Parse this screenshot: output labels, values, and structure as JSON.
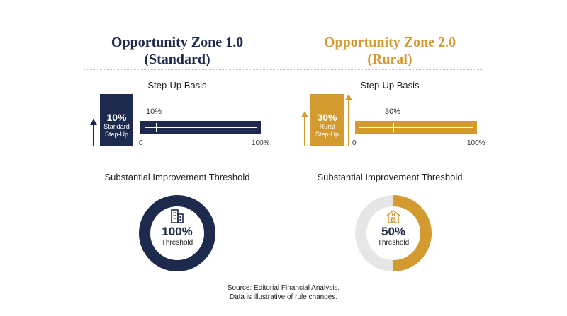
{
  "colors": {
    "navy": "#1d2a4d",
    "gold": "#d39a2f",
    "ring_track": "#e6e6e6"
  },
  "zone1": {
    "title_line1": "Opportunity Zone 1.0",
    "title_line2": "(Standard)",
    "step_up_heading": "Step-Up Basis",
    "box_pct": "10%",
    "box_label_1": "Standard",
    "box_label_2": "Step-Up",
    "bar_value_label": "10%",
    "bar_value": 10,
    "axis_min": "0",
    "axis_max": "100%",
    "threshold_heading": "Substantial Improvement Threshold",
    "ring_pct": "100%",
    "ring_label": "Threshold",
    "ring_value": 100,
    "icon": "office-building-icon"
  },
  "zone2": {
    "title_line1": "Opportunity Zone 2.0",
    "title_line2": "(Rural)",
    "step_up_heading": "Step-Up Basis",
    "box_pct": "30%",
    "box_label_1": "Rural",
    "box_label_2": "Step-Up",
    "bar_value_label": "30%",
    "bar_value": 30,
    "axis_min": "0",
    "axis_max": "100%",
    "threshold_heading": "Substantial Improvement Threshold",
    "ring_pct": "50%",
    "ring_label": "Threshold",
    "ring_value": 50,
    "icon": "barn-icon"
  },
  "source": {
    "line1": "Source: Editorial Financial Analysis.",
    "line2": "Data is illustrative of rule changes."
  }
}
